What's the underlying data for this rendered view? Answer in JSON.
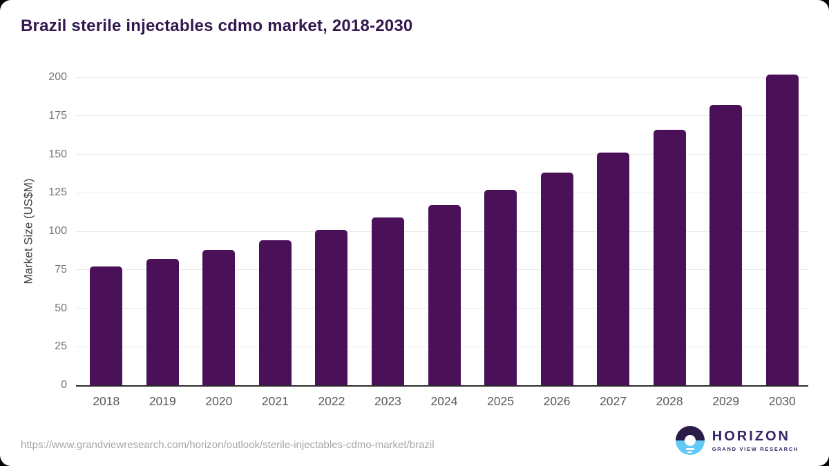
{
  "header": {
    "title": "Brazil sterile injectables cdmo market, 2018-2030"
  },
  "chart_data": {
    "type": "bar",
    "title": "Brazil sterile injectables cdmo market, 2018-2030",
    "categories": [
      "2018",
      "2019",
      "2020",
      "2021",
      "2022",
      "2023",
      "2024",
      "2025",
      "2026",
      "2027",
      "2028",
      "2029",
      "2030"
    ],
    "values": [
      77,
      82,
      88,
      94,
      101,
      109,
      117,
      127,
      138,
      151,
      166,
      182,
      202
    ],
    "unit": "US$M",
    "xlabel": "",
    "ylabel": "Market Size (US$M)",
    "ylim": [
      0,
      200
    ],
    "yticks": [
      0,
      25,
      50,
      75,
      100,
      125,
      150,
      175,
      200
    ],
    "grid": "horizontal-light",
    "legend_position": "none",
    "bar_color": "#4a1158"
  },
  "footer": {
    "source_url": "https://www.grandviewresearch.com/horizon/outlook/sterile-injectables-cdmo-market/brazil",
    "logo": {
      "wordmark": "HORIZON",
      "subtitle": "GRAND VIEW RESEARCH",
      "icon": "sun-over-horizon",
      "icon_top_color": "#2b1b47",
      "icon_bottom_color": "#62c9f5",
      "text_color": "#372566"
    }
  },
  "colors": {
    "bar": "#4a1158",
    "title": "#32184e",
    "axis_line": "#2a2a2a",
    "gridline": "#e9e9e9",
    "y_tick_label": "#757575",
    "x_tick_label": "#58595b",
    "url_text": "#a6a6a6",
    "background": "#ffffff"
  }
}
